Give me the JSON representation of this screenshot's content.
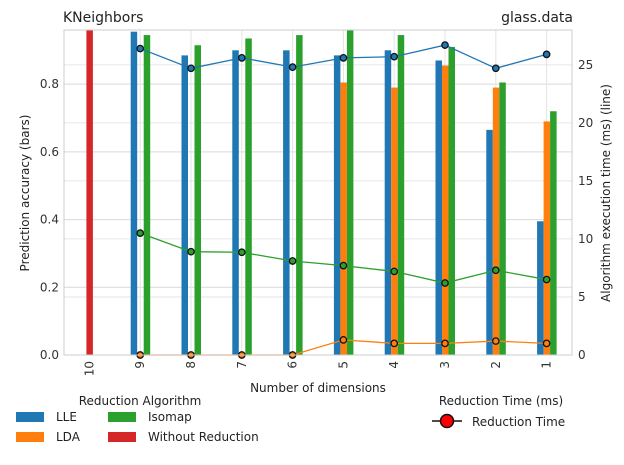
{
  "chart_data": {
    "type": "bar",
    "title_left": "KNeighbors",
    "title_right": "glass.data",
    "xlabel": "Number of dimensions",
    "ylabel_left": "Prediction accuracy (bars)",
    "ylabel_right": "Algorithm execution time (ms) (line)",
    "categories": [
      "10",
      "9",
      "8",
      "7",
      "6",
      "5",
      "4",
      "3",
      "2",
      "1"
    ],
    "ylim_left": [
      0,
      0.96
    ],
    "ylim_right": [
      0,
      28
    ],
    "yticks_left": [
      "0.0",
      "0.2",
      "0.4",
      "0.6",
      "0.8"
    ],
    "yticks_right": [
      "0",
      "5",
      "10",
      "15",
      "20",
      "25"
    ],
    "grid": true,
    "bar_series": [
      {
        "name": "LLE",
        "color": "#1f77b4",
        "values": [
          null,
          0.955,
          0.885,
          0.9,
          0.9,
          0.885,
          0.9,
          0.87,
          0.665,
          0.395
        ]
      },
      {
        "name": "LDA",
        "color": "#ff7f0e",
        "values": [
          null,
          0.0,
          0.0,
          0.0,
          0.0,
          0.805,
          0.79,
          0.855,
          0.79,
          0.69
        ]
      },
      {
        "name": "Isomap",
        "color": "#2ca02c",
        "values": [
          null,
          0.945,
          0.915,
          0.935,
          0.945,
          0.96,
          0.945,
          0.91,
          0.805,
          0.72
        ]
      },
      {
        "name": "Without Reduction",
        "color": "#d62728",
        "values": [
          0.96,
          null,
          null,
          null,
          null,
          null,
          null,
          null,
          null,
          null
        ]
      }
    ],
    "line_series": [
      {
        "name": "LLE",
        "color": "#1f77b4",
        "values": [
          null,
          26.4,
          24.7,
          25.6,
          24.8,
          25.6,
          25.7,
          26.7,
          24.7,
          25.9
        ]
      },
      {
        "name": "LDA",
        "color": "#ff7f0e",
        "values": [
          null,
          0.0,
          0.0,
          0.0,
          0.0,
          1.3,
          1.0,
          1.0,
          1.2,
          1.0
        ]
      },
      {
        "name": "Isomap",
        "color": "#2ca02c",
        "values": [
          null,
          10.5,
          8.9,
          8.85,
          8.1,
          7.7,
          7.2,
          6.2,
          7.3,
          6.5
        ]
      }
    ],
    "legend_left": {
      "title": "Reduction Algorithm",
      "entries": [
        {
          "label": "LLE",
          "color": "#1f77b4"
        },
        {
          "label": "Isomap",
          "color": "#2ca02c"
        },
        {
          "label": "LDA",
          "color": "#ff7f0e"
        },
        {
          "label": "Without Reduction",
          "color": "#d62728"
        }
      ],
      "placement": "bottom-left"
    },
    "legend_right": {
      "title": "Reduction Time (ms)",
      "label": "Reduction Time",
      "marker_color": "#ff0000",
      "placement": "bottom-right"
    }
  }
}
